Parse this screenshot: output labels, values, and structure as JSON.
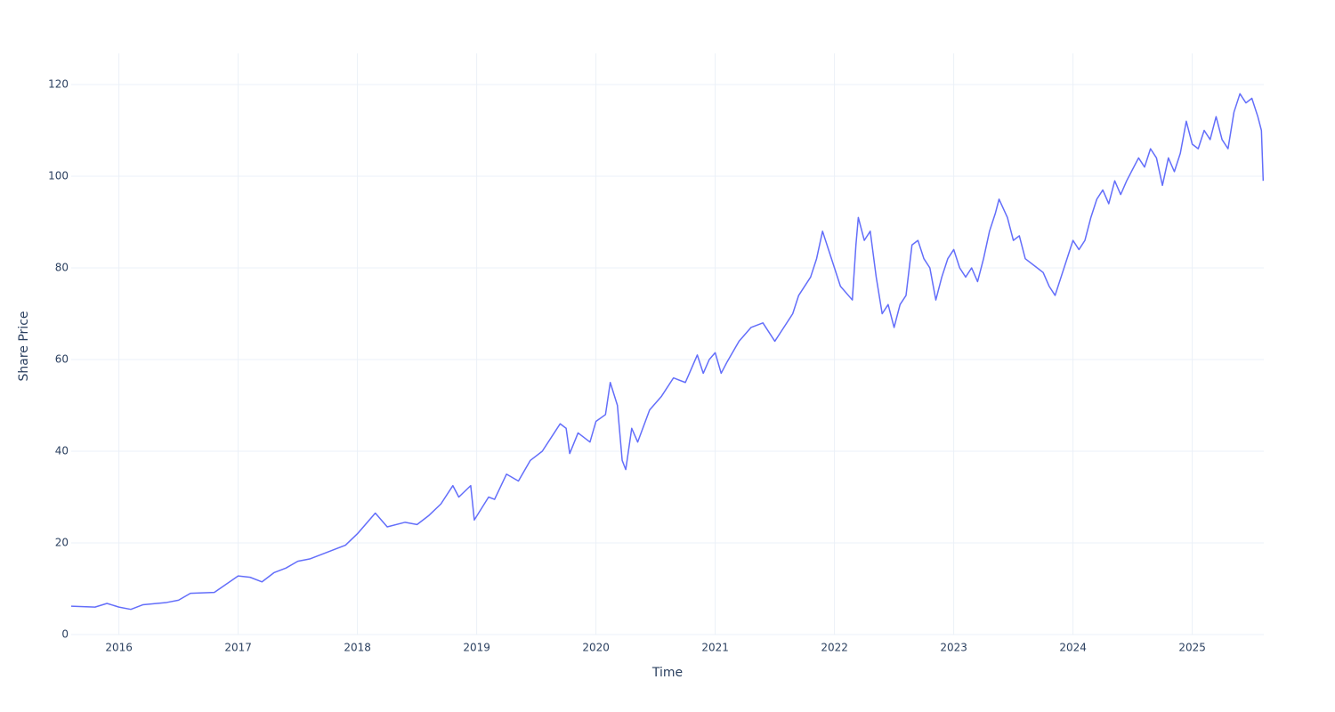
{
  "chart_data": {
    "type": "line",
    "x_label": "Time",
    "y_label": "Share Price",
    "x": [
      2015.6,
      2015.8,
      2015.9,
      2016.0,
      2016.1,
      2016.2,
      2016.4,
      2016.5,
      2016.6,
      2016.8,
      2016.9,
      2017.0,
      2017.1,
      2017.2,
      2017.3,
      2017.4,
      2017.5,
      2017.6,
      2017.75,
      2017.9,
      2018.0,
      2018.1,
      2018.15,
      2018.25,
      2018.4,
      2018.5,
      2018.6,
      2018.7,
      2018.8,
      2018.85,
      2018.95,
      2018.98,
      2019.1,
      2019.15,
      2019.25,
      2019.35,
      2019.45,
      2019.55,
      2019.65,
      2019.7,
      2019.75,
      2019.78,
      2019.85,
      2019.95,
      2020.0,
      2020.08,
      2020.12,
      2020.18,
      2020.22,
      2020.25,
      2020.3,
      2020.35,
      2020.45,
      2020.55,
      2020.65,
      2020.75,
      2020.8,
      2020.85,
      2020.9,
      2020.95,
      2021.0,
      2021.05,
      2021.1,
      2021.2,
      2021.3,
      2021.4,
      2021.5,
      2021.55,
      2021.65,
      2021.7,
      2021.8,
      2021.85,
      2021.9,
      2021.95,
      2022.0,
      2022.05,
      2022.15,
      2022.18,
      2022.2,
      2022.25,
      2022.3,
      2022.35,
      2022.4,
      2022.45,
      2022.5,
      2022.55,
      2022.6,
      2022.65,
      2022.7,
      2022.75,
      2022.8,
      2022.85,
      2022.9,
      2022.95,
      2023.0,
      2023.05,
      2023.1,
      2023.15,
      2023.2,
      2023.25,
      2023.3,
      2023.35,
      2023.38,
      2023.45,
      2023.5,
      2023.55,
      2023.6,
      2023.7,
      2023.75,
      2023.8,
      2023.85,
      2023.9,
      2023.95,
      2024.0,
      2024.05,
      2024.1,
      2024.15,
      2024.2,
      2024.25,
      2024.3,
      2024.35,
      2024.4,
      2024.45,
      2024.55,
      2024.6,
      2024.65,
      2024.7,
      2024.75,
      2024.8,
      2024.85,
      2024.9,
      2024.95,
      2025.0,
      2025.05,
      2025.1,
      2025.15,
      2025.2,
      2025.25,
      2025.3,
      2025.35,
      2025.4,
      2025.45,
      2025.5,
      2025.55,
      2025.58,
      2025.595
    ],
    "series": [
      {
        "name": "Share Price",
        "color": "#636efa",
        "values": [
          6.2,
          6.0,
          6.8,
          6.0,
          5.5,
          6.5,
          7.0,
          7.5,
          9.0,
          9.2,
          11,
          12.8,
          12.5,
          11.5,
          13.5,
          14.5,
          16,
          16.5,
          18,
          19.5,
          22,
          25,
          26.5,
          23.5,
          24.5,
          24,
          26,
          28.5,
          32.5,
          30,
          32.5,
          25,
          30,
          29.5,
          35,
          33.5,
          38,
          40,
          44,
          46,
          45,
          39.5,
          44,
          42,
          46.5,
          48,
          55,
          50,
          38,
          36,
          45,
          42,
          49,
          52,
          56,
          55,
          58,
          61,
          57,
          60,
          61.5,
          57,
          59.5,
          64,
          67,
          68,
          64,
          66,
          70,
          74,
          78,
          82,
          88,
          84,
          80,
          76,
          73,
          85,
          91,
          86,
          88,
          78,
          70,
          72,
          67,
          72,
          74,
          85,
          86,
          82,
          80,
          73,
          78,
          82,
          84,
          80,
          78,
          80,
          77,
          82,
          88,
          92,
          95,
          91,
          86,
          87,
          82,
          80,
          79,
          76,
          74,
          78,
          82,
          86,
          84,
          86,
          91,
          95,
          97,
          94,
          99,
          96,
          99,
          104,
          102,
          106,
          104,
          98,
          104,
          101,
          105,
          112,
          107,
          106,
          110,
          108,
          113,
          108,
          106,
          114,
          118,
          116,
          117,
          113,
          110,
          99
        ]
      }
    ],
    "xlim": [
      2015.6,
      2025.6
    ],
    "xticks": [
      2016,
      2017,
      2018,
      2019,
      2020,
      2021,
      2022,
      2023,
      2024,
      2025
    ],
    "ylim": [
      0,
      126.8
    ],
    "yticks": [
      0,
      20,
      40,
      60,
      80,
      100,
      120
    ],
    "grid": true
  }
}
